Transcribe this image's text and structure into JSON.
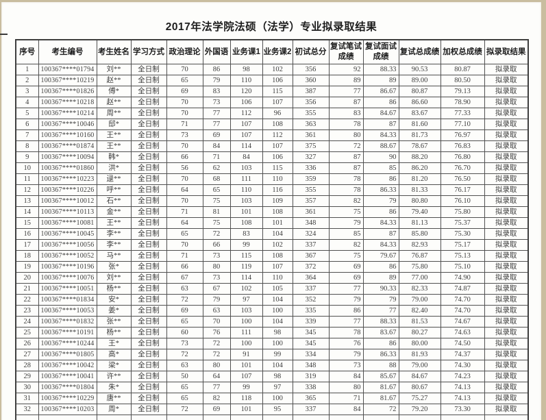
{
  "page": {
    "title": "2017年法学院法硕（法学）专业拟录取结果"
  },
  "table": {
    "columns": [
      "序号",
      "考生编号",
      "考生姓名",
      "学习方式",
      "政治理论",
      "外国语",
      "业务课1",
      "业务课2",
      "初试总分",
      "复试笔试\n成绩",
      "复试面试\n成绩",
      "复试总成绩",
      "加权总成绩",
      "拟录取结果"
    ],
    "rows": [
      [
        "1",
        "100367****01794",
        "刘**",
        "全日制",
        "70",
        "86",
        "98",
        "102",
        "356",
        "92",
        "88.33",
        "90.53",
        "80.87",
        "拟录取"
      ],
      [
        "2",
        "100367****10219",
        "赵**",
        "全日制",
        "65",
        "79",
        "110",
        "106",
        "360",
        "89",
        "89",
        "89.00",
        "80.50",
        "拟录取"
      ],
      [
        "3",
        "100367****01826",
        "傅*",
        "全日制",
        "69",
        "83",
        "120",
        "115",
        "387",
        "77",
        "86.67",
        "80.87",
        "79.13",
        "拟录取"
      ],
      [
        "4",
        "100367****10218",
        "赵**",
        "全日制",
        "70",
        "73",
        "106",
        "107",
        "356",
        "87",
        "86",
        "86.60",
        "78.90",
        "拟录取"
      ],
      [
        "5",
        "100367****10214",
        "周**",
        "全日制",
        "70",
        "77",
        "112",
        "96",
        "355",
        "83",
        "84.67",
        "83.67",
        "77.33",
        "拟录取"
      ],
      [
        "6",
        "100367****10046",
        "邸*",
        "全日制",
        "71",
        "77",
        "107",
        "108",
        "363",
        "78",
        "87",
        "81.60",
        "77.10",
        "拟录取"
      ],
      [
        "7",
        "100367****10160",
        "王**",
        "全日制",
        "73",
        "69",
        "107",
        "112",
        "361",
        "80",
        "84.33",
        "81.73",
        "76.97",
        "拟录取"
      ],
      [
        "8",
        "100367****01874",
        "王**",
        "全日制",
        "70",
        "84",
        "114",
        "107",
        "375",
        "72",
        "88.67",
        "78.67",
        "76.83",
        "拟录取"
      ],
      [
        "9",
        "100367****10094",
        "韩*",
        "全日制",
        "66",
        "71",
        "84",
        "106",
        "327",
        "87",
        "90",
        "88.20",
        "76.80",
        "拟录取"
      ],
      [
        "10",
        "100367****01860",
        "洪*",
        "全日制",
        "56",
        "62",
        "103",
        "115",
        "336",
        "87",
        "85",
        "86.20",
        "76.70",
        "拟录取"
      ],
      [
        "11",
        "100367****10223",
        "逯**",
        "全日制",
        "70",
        "68",
        "111",
        "110",
        "359",
        "78",
        "86",
        "81.20",
        "76.50",
        "拟录取"
      ],
      [
        "12",
        "100367****10226",
        "呼**",
        "全日制",
        "64",
        "65",
        "110",
        "116",
        "355",
        "78",
        "86.33",
        "81.33",
        "76.17",
        "拟录取"
      ],
      [
        "13",
        "100367****10012",
        "石**",
        "全日制",
        "70",
        "75",
        "103",
        "109",
        "357",
        "82",
        "79",
        "80.80",
        "76.10",
        "拟录取"
      ],
      [
        "14",
        "100367****10113",
        "金**",
        "全日制",
        "71",
        "81",
        "101",
        "108",
        "361",
        "75",
        "86",
        "79.40",
        "75.80",
        "拟录取"
      ],
      [
        "15",
        "100367****10081",
        "王**",
        "全日制",
        "64",
        "75",
        "108",
        "101",
        "348",
        "79",
        "84.33",
        "81.13",
        "75.37",
        "拟录取"
      ],
      [
        "16",
        "100367****10045",
        "李**",
        "全日制",
        "65",
        "72",
        "83",
        "104",
        "324",
        "85",
        "87",
        "85.80",
        "75.30",
        "拟录取"
      ],
      [
        "17",
        "100367****10056",
        "李**",
        "全日制",
        "70",
        "66",
        "99",
        "102",
        "337",
        "82",
        "84.33",
        "82.93",
        "75.17",
        "拟录取"
      ],
      [
        "18",
        "100367****10052",
        "马**",
        "全日制",
        "71",
        "73",
        "115",
        "108",
        "367",
        "75",
        "79.67",
        "76.87",
        "75.13",
        "拟录取"
      ],
      [
        "19",
        "100367****10196",
        "张*",
        "全日制",
        "66",
        "80",
        "119",
        "107",
        "372",
        "69",
        "86",
        "75.80",
        "75.10",
        "拟录取"
      ],
      [
        "20",
        "100367****10076",
        "刘**",
        "全日制",
        "67",
        "73",
        "114",
        "110",
        "364",
        "69",
        "89",
        "77.00",
        "74.90",
        "拟录取"
      ],
      [
        "21",
        "100367****10051",
        "杨**",
        "全日制",
        "63",
        "67",
        "102",
        "105",
        "337",
        "77",
        "90.33",
        "82.33",
        "74.87",
        "拟录取"
      ],
      [
        "22",
        "100367****01834",
        "安*",
        "全日制",
        "72",
        "79",
        "97",
        "104",
        "352",
        "79",
        "79",
        "79.00",
        "74.70",
        "拟录取"
      ],
      [
        "23",
        "100367****10053",
        "姜*",
        "全日制",
        "69",
        "63",
        "103",
        "100",
        "335",
        "86",
        "77",
        "82.40",
        "74.70",
        "拟录取"
      ],
      [
        "24",
        "100367****01832",
        "张**",
        "全日制",
        "65",
        "70",
        "100",
        "104",
        "339",
        "77",
        "88.33",
        "81.53",
        "74.67",
        "拟录取"
      ],
      [
        "25",
        "100367****10191",
        "杨**",
        "全日制",
        "60",
        "76",
        "111",
        "98",
        "345",
        "78",
        "83.67",
        "80.27",
        "74.63",
        "拟录取"
      ],
      [
        "26",
        "100367****10244",
        "王*",
        "全日制",
        "73",
        "72",
        "100",
        "100",
        "345",
        "76",
        "86",
        "80.00",
        "74.50",
        "拟录取"
      ],
      [
        "27",
        "100367****01805",
        "高*",
        "全日制",
        "72",
        "72",
        "91",
        "99",
        "334",
        "79",
        "86.33",
        "81.93",
        "74.37",
        "拟录取"
      ],
      [
        "28",
        "100367****10042",
        "梁*",
        "全日制",
        "63",
        "80",
        "101",
        "104",
        "348",
        "73",
        "88",
        "79.00",
        "74.30",
        "拟录取"
      ],
      [
        "29",
        "100367****10041",
        "许**",
        "全日制",
        "50",
        "64",
        "107",
        "98",
        "319",
        "84",
        "85.67",
        "84.67",
        "74.23",
        "拟录取"
      ],
      [
        "30",
        "100367****01804",
        "朱*",
        "全日制",
        "65",
        "77",
        "99",
        "97",
        "338",
        "80",
        "81.67",
        "80.67",
        "74.13",
        "拟录取"
      ],
      [
        "31",
        "100367****10229",
        "唐**",
        "全日制",
        "65",
        "82",
        "118",
        "100",
        "365",
        "71",
        "81.67",
        "75.27",
        "74.13",
        "拟录取"
      ],
      [
        "32",
        "100367****10203",
        "周*",
        "全日制",
        "72",
        "69",
        "101",
        "95",
        "337",
        "84",
        "72",
        "79.20",
        "73.30",
        "拟录取"
      ]
    ]
  },
  "colors": {
    "frame_bg": "#c9bd9f",
    "page_bg": "#fdfdfb",
    "border": "#4f4f4f",
    "text": "#3c3c3c",
    "heading_text": "#1d1d1d"
  }
}
